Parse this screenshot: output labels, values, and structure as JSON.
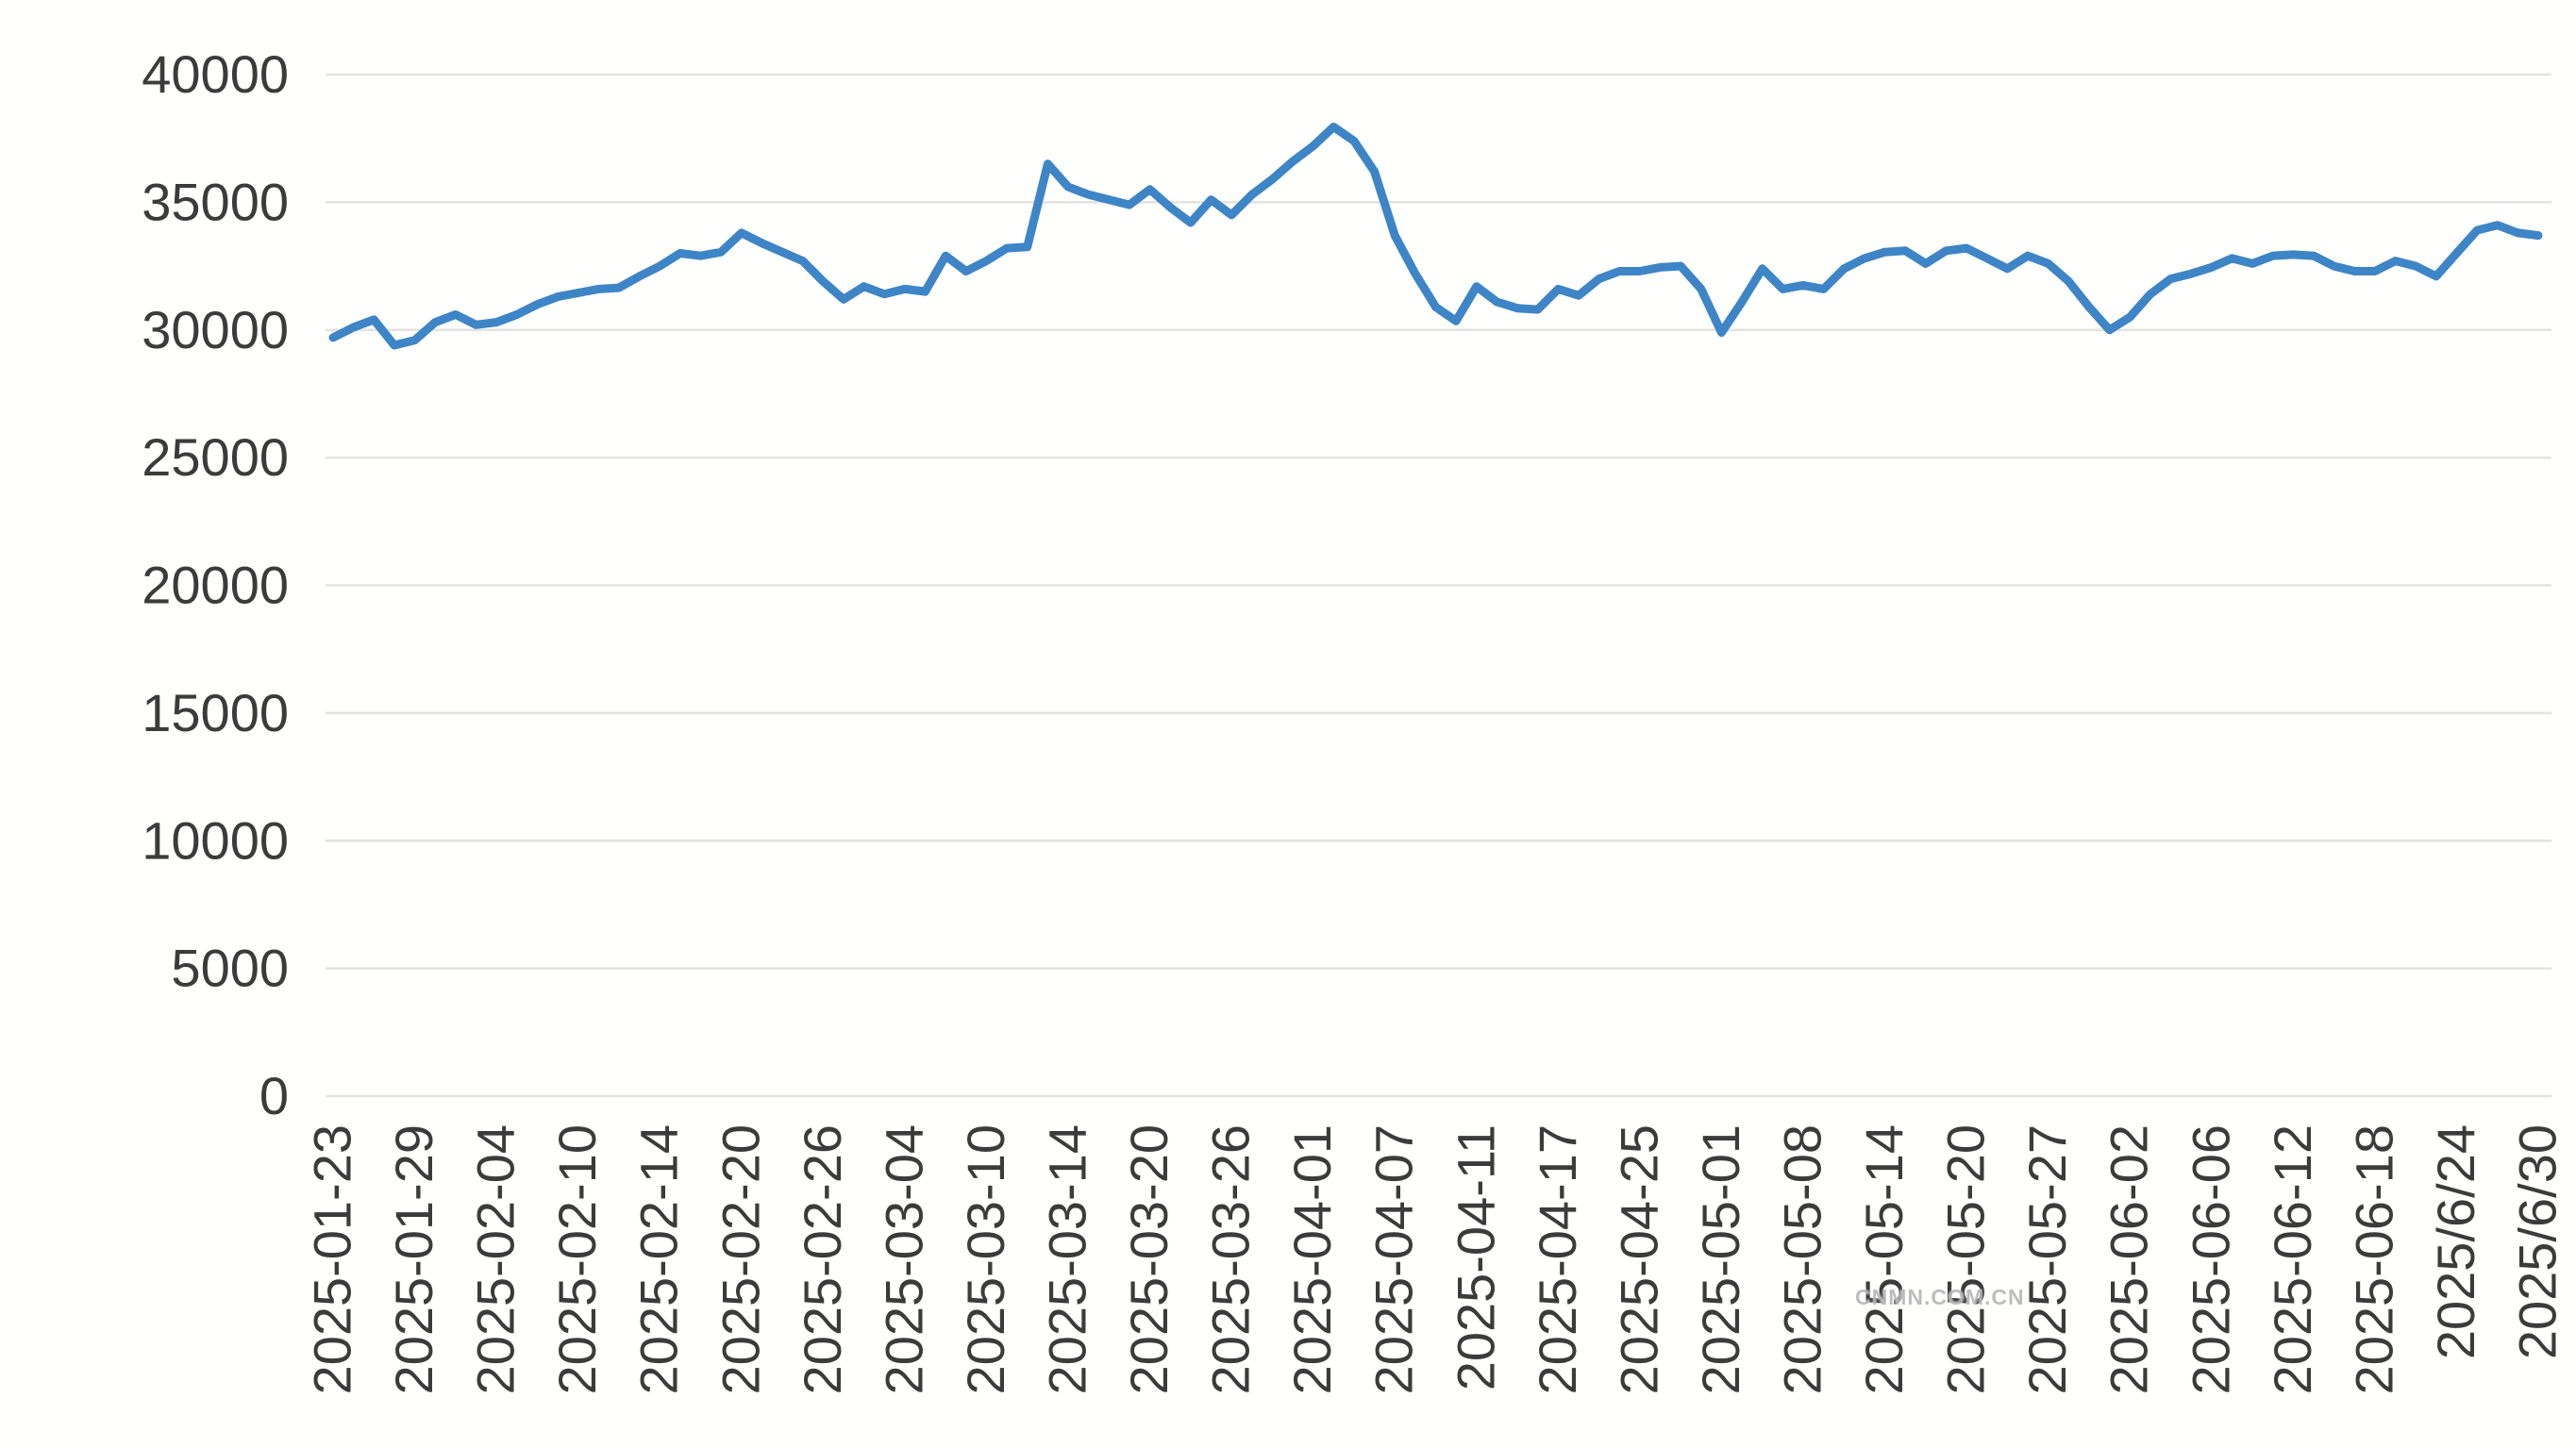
{
  "chart_data": {
    "type": "line",
    "title": "",
    "xlabel": "",
    "ylabel": "",
    "ylim": [
      0,
      40000
    ],
    "y_ticks": [
      0,
      5000,
      10000,
      15000,
      20000,
      25000,
      30000,
      35000,
      40000
    ],
    "grid": "horizontal",
    "legend_position": "none",
    "line_color": "#3d85c6",
    "grid_color": "#e3e2df",
    "label_color": "#3b3b3b",
    "background_color": "#fffffe",
    "x_labels": [
      "2025-01-23",
      "2025-01-29",
      "2025-02-04",
      "2025-02-10",
      "2025-02-14",
      "2025-02-20",
      "2025-02-26",
      "2025-03-04",
      "2025-03-10",
      "2025-03-14",
      "2025-03-20",
      "2025-03-26",
      "2025-04-01",
      "2025-04-07",
      "2025-04-11",
      "2025-04-17",
      "2025-04-25",
      "2025-05-01",
      "2025-05-08",
      "2025-05-14",
      "2025-05-20",
      "2025-05-27",
      "2025-06-02",
      "2025-06-06",
      "2025-06-12",
      "2025-06-18",
      "2025/6/24",
      "2025/6/30"
    ],
    "x_label_interval_points": 4,
    "values": [
      29700,
      30100,
      30400,
      29400,
      29600,
      30300,
      30600,
      30200,
      30300,
      30600,
      31000,
      31300,
      31450,
      31600,
      31650,
      32100,
      32500,
      33000,
      32900,
      33050,
      33800,
      33400,
      33050,
      32700,
      31900,
      31200,
      31700,
      31400,
      31600,
      31500,
      32900,
      32300,
      32700,
      33200,
      33250,
      36500,
      35600,
      35300,
      35100,
      34900,
      35500,
      34800,
      34200,
      35100,
      34500,
      35300,
      35900,
      36600,
      37200,
      37950,
      37400,
      36200,
      33700,
      32200,
      30900,
      30350,
      31700,
      31100,
      30850,
      30800,
      31600,
      31350,
      32000,
      32300,
      32300,
      32450,
      32500,
      31600,
      29900,
      31100,
      32400,
      31600,
      31750,
      31600,
      32400,
      32800,
      33050,
      33100,
      32600,
      33100,
      33200,
      32800,
      32400,
      32900,
      32600,
      31900,
      30900,
      30000,
      30500,
      31400,
      32000,
      32200,
      32450,
      32800,
      32600,
      32900,
      32950,
      32900,
      32500,
      32300,
      32300,
      32700,
      32500,
      32100,
      33000,
      33900,
      34100,
      33800,
      33700
    ]
  },
  "watermark": {
    "text": "CNMN.COM.CN"
  }
}
